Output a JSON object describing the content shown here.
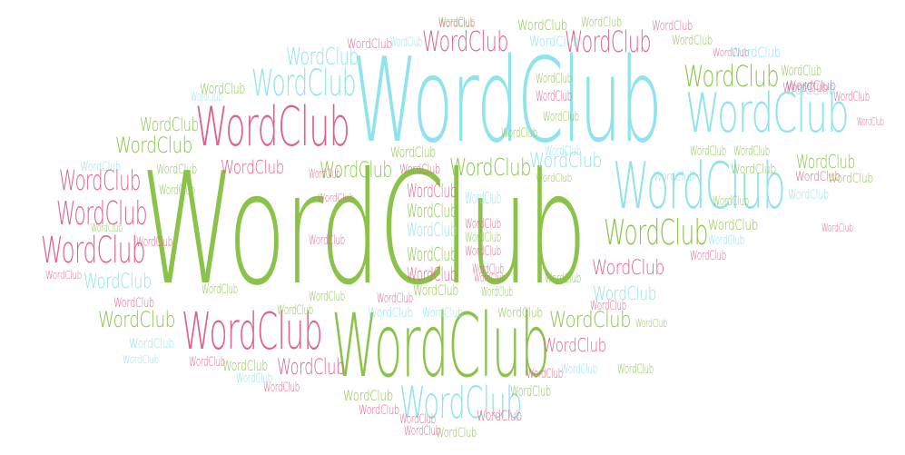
{
  "word_cloud": {
    "word": "WordClub",
    "palette": {
      "green": "#8bc34a",
      "pink": "#e0608a",
      "cyan": "#8fe3ec"
    },
    "words": [
      {
        "text": "WordClub",
        "color": "green"
      },
      {
        "text": "WordClub",
        "color": "cyan"
      },
      {
        "text": "WordClub",
        "color": "green"
      },
      {
        "text": "WordClub",
        "color": "pink"
      },
      {
        "text": "WordClub",
        "color": "cyan"
      },
      {
        "text": "WordClub",
        "color": "cyan"
      },
      {
        "text": "WordClub",
        "color": "pink"
      },
      {
        "text": "WordClub",
        "color": "cyan"
      },
      {
        "text": "WordClub",
        "color": "green"
      },
      {
        "text": "WordClub",
        "color": "pink"
      },
      {
        "text": "WordClub",
        "color": "pink"
      },
      {
        "text": "WordClub",
        "color": "pink"
      },
      {
        "text": "WordClub",
        "color": "cyan"
      },
      {
        "text": "WordClub",
        "color": "pink"
      },
      {
        "text": "WordClub",
        "color": "green"
      },
      {
        "text": "WordClub",
        "color": "pink"
      },
      {
        "text": "WordClub",
        "color": "cyan"
      },
      {
        "text": "WordClub",
        "color": "green"
      },
      {
        "text": "WordClub",
        "color": "green"
      },
      {
        "text": "WordClub",
        "color": "cyan"
      },
      {
        "text": "WordClub",
        "color": "green"
      },
      {
        "text": "WordClub",
        "color": "pink"
      },
      {
        "text": "WordClub",
        "color": "green"
      },
      {
        "text": "WordClub",
        "color": "pink"
      },
      {
        "text": "WordClub",
        "color": "cyan"
      },
      {
        "text": "WordClub",
        "color": "pink"
      },
      {
        "text": "WordClub",
        "color": "green"
      },
      {
        "text": "WordClub",
        "color": "cyan"
      },
      {
        "text": "WordClub",
        "color": "green"
      },
      {
        "text": "WordClub",
        "color": "pink"
      },
      {
        "text": "WordClub",
        "color": "green"
      },
      {
        "text": "WordClub",
        "color": "cyan"
      },
      {
        "text": "WordClub",
        "color": "green"
      },
      {
        "text": "WordClub",
        "color": "pink"
      },
      {
        "text": "WordClub",
        "color": "cyan"
      },
      {
        "text": "WordClub",
        "color": "green"
      },
      {
        "text": "WordClub",
        "color": "pink"
      },
      {
        "text": "WordClub",
        "color": "green"
      },
      {
        "text": "WordClub",
        "color": "cyan"
      },
      {
        "text": "WordClub",
        "color": "green"
      },
      {
        "text": "WordClub",
        "color": "pink"
      },
      {
        "text": "WordClub",
        "color": "green"
      },
      {
        "text": "WordClub",
        "color": "cyan"
      },
      {
        "text": "WordClub",
        "color": "pink"
      },
      {
        "text": "WordClub",
        "color": "green"
      },
      {
        "text": "WordClub",
        "color": "pink"
      },
      {
        "text": "WordClub",
        "color": "cyan"
      },
      {
        "text": "WordClub",
        "color": "green"
      },
      {
        "text": "WordClub",
        "color": "pink"
      },
      {
        "text": "WordClub",
        "color": "green"
      },
      {
        "text": "WordClub",
        "color": "pink"
      },
      {
        "text": "WordClub",
        "color": "green"
      },
      {
        "text": "WordClub",
        "color": "cyan"
      },
      {
        "text": "WordClub",
        "color": "green"
      },
      {
        "text": "WordClub",
        "color": "pink"
      },
      {
        "text": "WordClub",
        "color": "green"
      },
      {
        "text": "WordClub",
        "color": "cyan"
      },
      {
        "text": "WordClub",
        "color": "green"
      },
      {
        "text": "WordClub",
        "color": "pink"
      },
      {
        "text": "WordClub",
        "color": "pink"
      },
      {
        "text": "WordClub",
        "color": "green"
      },
      {
        "text": "WordClub",
        "color": "green"
      },
      {
        "text": "WordClub",
        "color": "pink"
      },
      {
        "text": "WordClub",
        "color": "cyan"
      },
      {
        "text": "WordClub",
        "color": "pink"
      },
      {
        "text": "WordClub",
        "color": "cyan"
      },
      {
        "text": "WordClub",
        "color": "green"
      },
      {
        "text": "WordClub",
        "color": "pink"
      },
      {
        "text": "WordClub",
        "color": "green"
      },
      {
        "text": "WordClub",
        "color": "cyan"
      },
      {
        "text": "WordClub",
        "color": "pink"
      },
      {
        "text": "WordClub",
        "color": "green"
      },
      {
        "text": "WordClub",
        "color": "cyan"
      },
      {
        "text": "WordClub",
        "color": "pink"
      },
      {
        "text": "WordClub",
        "color": "green"
      },
      {
        "text": "WordClub",
        "color": "pink"
      },
      {
        "text": "WordClub",
        "color": "green"
      },
      {
        "text": "WordClub",
        "color": "cyan"
      },
      {
        "text": "WordClub",
        "color": "pink"
      },
      {
        "text": "WordClub",
        "color": "green"
      },
      {
        "text": "WordClub",
        "color": "cyan"
      },
      {
        "text": "WordClub",
        "color": "pink"
      },
      {
        "text": "WordClub",
        "color": "green"
      },
      {
        "text": "WordClub",
        "color": "pink"
      },
      {
        "text": "WordClub",
        "color": "green"
      },
      {
        "text": "WordClub",
        "color": "pink"
      },
      {
        "text": "WordClub",
        "color": "green"
      },
      {
        "text": "WordClub",
        "color": "pink"
      },
      {
        "text": "WordClub",
        "color": "cyan"
      },
      {
        "text": "WordClub",
        "color": "green"
      },
      {
        "text": "WordClub",
        "color": "pink"
      },
      {
        "text": "WordClub",
        "color": "green"
      },
      {
        "text": "WordClub",
        "color": "pink"
      },
      {
        "text": "WordClub",
        "color": "cyan"
      },
      {
        "text": "WordClub",
        "color": "pink"
      },
      {
        "text": "WordClub",
        "color": "pink"
      },
      {
        "text": "WordClub",
        "color": "green"
      },
      {
        "text": "WordClub",
        "color": "pink"
      },
      {
        "text": "WordClub",
        "color": "cyan"
      },
      {
        "text": "WordClub",
        "color": "green"
      },
      {
        "text": "WordClub",
        "color": "pink"
      },
      {
        "text": "WordClub",
        "color": "pink"
      },
      {
        "text": "WordClub",
        "color": "green"
      },
      {
        "text": "WordClub",
        "color": "pink"
      },
      {
        "text": "WordClub",
        "color": "green"
      },
      {
        "text": "WordClub",
        "color": "pink"
      },
      {
        "text": "WordClub",
        "color": "green"
      },
      {
        "text": "WordClub",
        "color": "pink"
      },
      {
        "text": "WordClub",
        "color": "green"
      },
      {
        "text": "WordClub",
        "color": "green"
      },
      {
        "text": "WordClub",
        "color": "pink"
      },
      {
        "text": "WordClub",
        "color": "green"
      },
      {
        "text": "WordClub",
        "color": "green"
      },
      {
        "text": "WordClub",
        "color": "pink"
      },
      {
        "text": "WordClub",
        "color": "cyan"
      },
      {
        "text": "WordClub",
        "color": "green"
      },
      {
        "text": "WordClub",
        "color": "pink"
      },
      {
        "text": "WordClub",
        "color": "cyan"
      },
      {
        "text": "WordClub",
        "color": "green"
      }
    ]
  }
}
